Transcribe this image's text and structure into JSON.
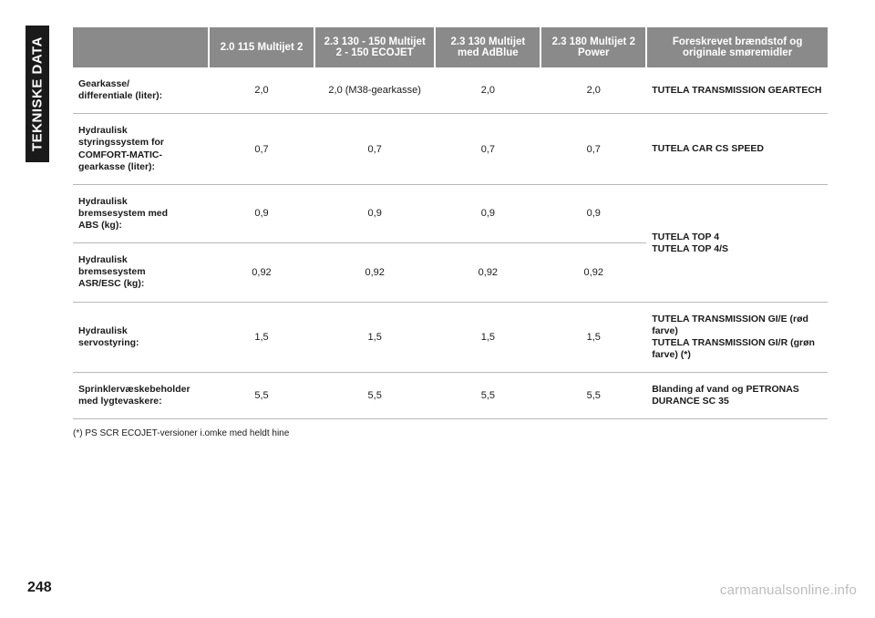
{
  "side_tab": "TEKNISKE DATA",
  "page_number": "248",
  "watermark": "carmanualsonline.info",
  "footnote": "(*) PS SCR ECOJET-versioner i.omke med heldt hine",
  "table": {
    "col_widths_pct": [
      18,
      14,
      16,
      14,
      14,
      24
    ],
    "header_bg": "#8a8a8a",
    "header_fg": "#ffffff",
    "border_color": "#b8b8b8",
    "font_family": "Arial",
    "header_fontsize_pt": 9,
    "cell_fontsize_pt": 8,
    "label_fontsize_pt": 8,
    "columns": [
      "",
      "2.0 115 Multijet 2",
      "2.3 130 - 150 Multijet 2 - 150 ECOJET",
      "2.3 130 Multijet med AdBlue",
      "2.3 180 Multijet 2 Power",
      "Foreskrevet brændstof og originale smøremidler"
    ],
    "rows": [
      {
        "label": "Gearkasse/\ndifferentiale (liter):",
        "cells": [
          "2,0",
          "2,0 (M38-gearkasse)",
          "2,0",
          "2,0"
        ],
        "fluid": "TUTELA TRANSMISSION GEARTECH",
        "rowspan_fluid": 1
      },
      {
        "label": "Hydraulisk\nstyringssystem for\nCOMFORT-MATIC-\ngearkasse (liter):",
        "cells": [
          "0,7",
          "0,7",
          "0,7",
          "0,7"
        ],
        "fluid": "TUTELA CAR CS SPEED",
        "rowspan_fluid": 1
      },
      {
        "label": "Hydraulisk\nbremsesystem med\nABS (kg):",
        "cells": [
          "0,9",
          "0,9",
          "0,9",
          "0,9"
        ],
        "fluid": "TUTELA TOP 4\nTUTELA TOP 4/S",
        "rowspan_fluid": 2
      },
      {
        "label": "Hydraulisk\nbremsesystem\nASR/ESC (kg):",
        "cells": [
          "0,92",
          "0,92",
          "0,92",
          "0,92"
        ],
        "fluid": null,
        "rowspan_fluid": 0
      },
      {
        "label": "Hydraulisk\nservostyring:",
        "cells": [
          "1,5",
          "1,5",
          "1,5",
          "1,5"
        ],
        "fluid": "TUTELA TRANSMISSION GI/E (rød farve)\nTUTELA TRANSMISSION GI/R (grøn farve) (*)",
        "rowspan_fluid": 1
      },
      {
        "label": "Sprinklervæskebeholder\nmed lygtevaskere:",
        "cells": [
          "5,5",
          "5,5",
          "5,5",
          "5,5"
        ],
        "fluid": "Blanding af vand og PETRONAS DURANCE SC 35",
        "rowspan_fluid": 1
      }
    ]
  }
}
